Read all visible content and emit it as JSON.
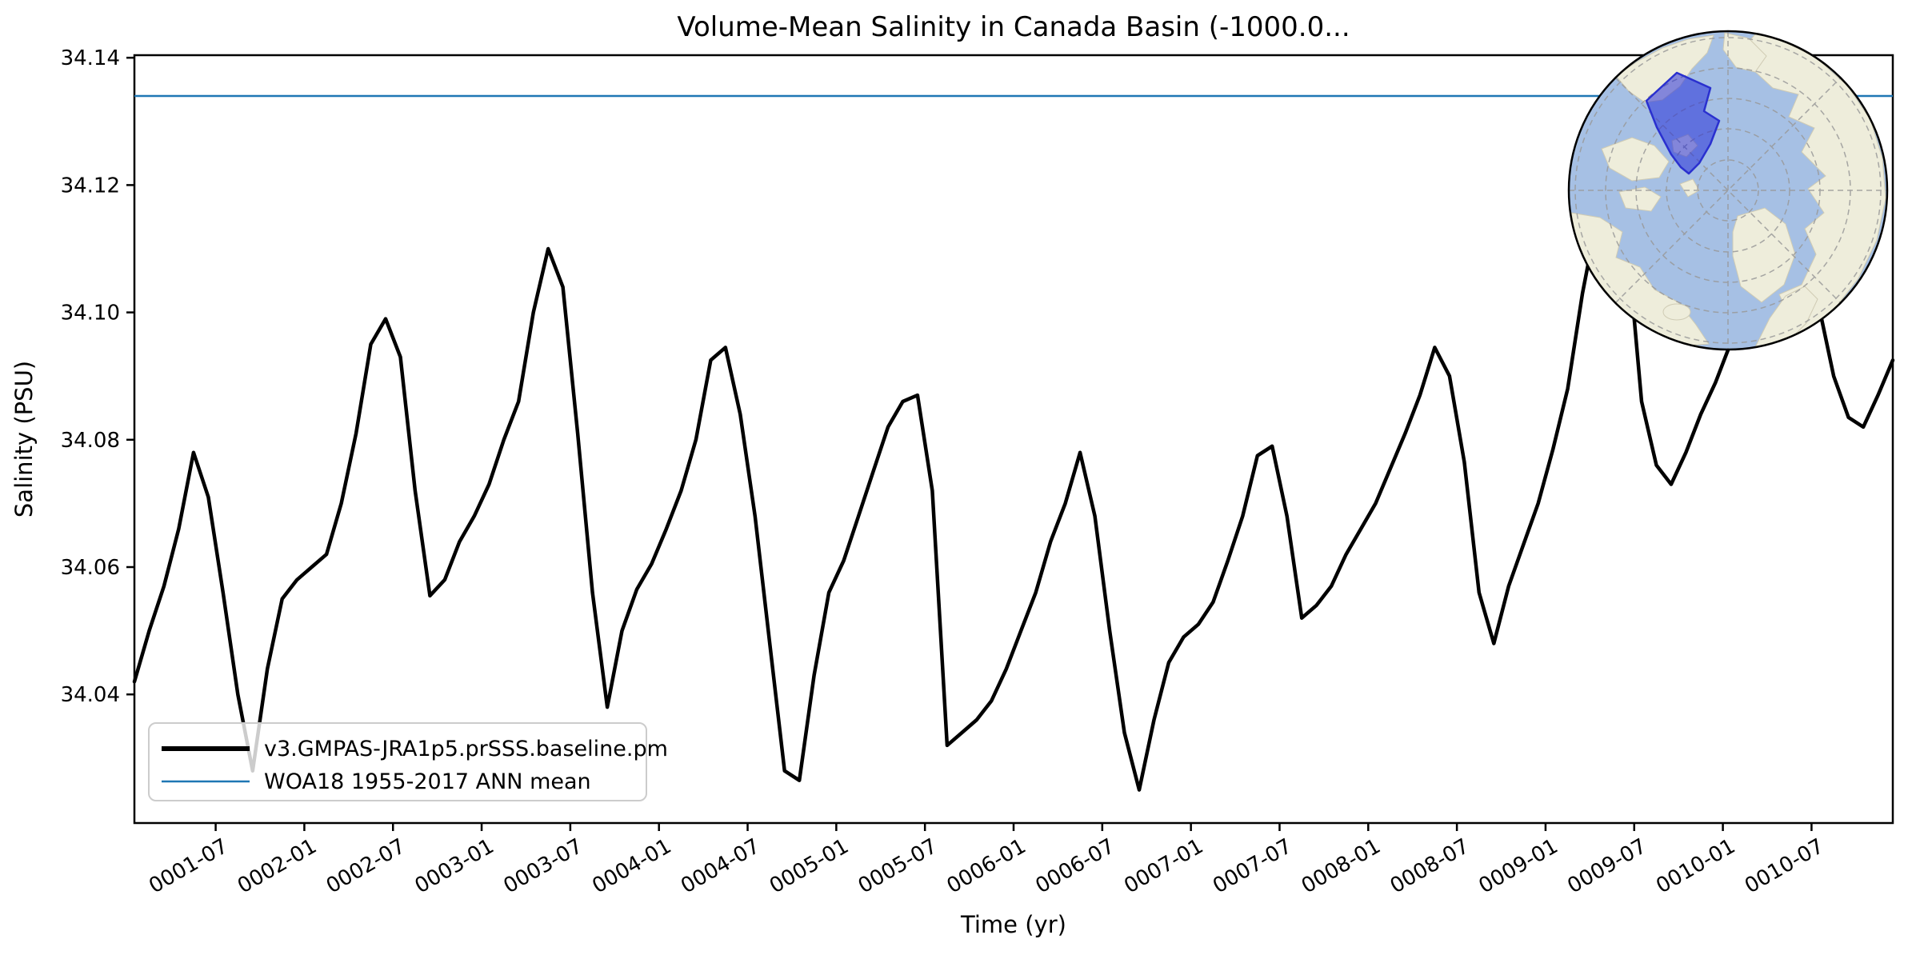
{
  "title": "Volume-Mean Salinity in Canada Basin (-1000.0...",
  "axes": {
    "xlabel": "Time (yr)",
    "ylabel": "Salinity (PSU)",
    "x_tick_labels": [
      "0001-07",
      "0002-01",
      "0002-07",
      "0003-01",
      "0003-07",
      "0004-01",
      "0004-07",
      "0005-01",
      "0005-07",
      "0006-01",
      "0006-07",
      "0007-01",
      "0007-07",
      "0008-01",
      "0008-07",
      "0009-01",
      "0009-07",
      "0010-01",
      "0010-07"
    ],
    "x_tick_month_index": [
      5.5,
      11.5,
      17.5,
      23.5,
      29.5,
      35.5,
      41.5,
      47.5,
      53.5,
      59.5,
      65.5,
      71.5,
      77.5,
      83.5,
      89.5,
      95.5,
      101.5,
      107.5,
      113.5
    ],
    "y_tick_labels": [
      "34.04",
      "34.06",
      "34.08",
      "34.10",
      "34.12",
      "34.14"
    ],
    "y_tick_values": [
      34.04,
      34.06,
      34.08,
      34.1,
      34.12,
      34.14
    ],
    "ylim": [
      34.0198,
      34.1404
    ],
    "xlim_months": [
      0,
      119
    ]
  },
  "legend": {
    "entries": [
      {
        "label": "v3.GMPAS-JRA1p5.prSSS.baseline.pm",
        "color": "#000000",
        "linewidth": 5
      },
      {
        "label": "WOA18 1955-2017 ANN mean",
        "color": "#1f77b4",
        "linewidth": 2.5
      }
    ]
  },
  "chart_data": {
    "type": "line",
    "title": "Volume-Mean Salinity in Canada Basin (-1000.0...",
    "xlabel": "Time (yr)",
    "ylabel": "Salinity (PSU)",
    "x_start_month": "0001-01",
    "x_end_month": "0010-12",
    "ylim": [
      34.0198,
      34.1404
    ],
    "grid": false,
    "legend_position": "lower-left",
    "series": [
      {
        "name": "v3.GMPAS-JRA1p5.prSSS.baseline.pm",
        "color": "#000000",
        "monthly_values": [
          34.042,
          34.05,
          34.057,
          34.066,
          34.078,
          34.071,
          34.056,
          34.04,
          34.028,
          34.044,
          34.055,
          34.058,
          34.06,
          34.062,
          34.07,
          34.081,
          34.095,
          34.099,
          34.093,
          34.072,
          34.0555,
          34.058,
          34.064,
          34.068,
          34.073,
          34.08,
          34.086,
          34.1,
          34.11,
          34.104,
          34.081,
          34.056,
          34.038,
          34.05,
          34.0565,
          34.0605,
          34.066,
          34.072,
          34.08,
          34.0925,
          34.0945,
          34.084,
          34.068,
          34.048,
          34.028,
          34.0265,
          34.043,
          34.056,
          34.061,
          34.068,
          34.075,
          34.082,
          34.086,
          34.087,
          34.072,
          34.032,
          34.034,
          34.036,
          34.039,
          34.044,
          34.05,
          34.056,
          34.064,
          34.07,
          34.078,
          34.068,
          34.05,
          34.034,
          34.025,
          34.036,
          34.045,
          34.049,
          34.051,
          34.0545,
          34.061,
          34.068,
          34.0775,
          34.079,
          34.068,
          34.052,
          34.054,
          34.057,
          34.062,
          34.066,
          34.07,
          34.0755,
          34.081,
          34.087,
          34.0945,
          34.09,
          34.0765,
          34.056,
          34.048,
          34.057,
          34.0635,
          34.07,
          34.0785,
          34.088,
          34.103,
          34.115,
          34.124,
          34.112,
          34.086,
          34.076,
          34.073,
          34.078,
          34.084,
          34.089,
          34.095,
          34.103,
          34.112,
          34.119,
          34.123,
          34.116,
          34.101,
          34.09,
          34.0835,
          34.082,
          34.087,
          34.0925
        ]
      },
      {
        "name": "WOA18 1955-2017 ANN mean",
        "color": "#1f77b4",
        "constant_value": 34.134
      }
    ]
  },
  "inset_map": {
    "name": "canada-basin-region-inset",
    "colors": {
      "ocean": "#a6c0e4",
      "land": "#eeeddb",
      "land_edge": "#cfcbb4",
      "graticule": "#999999",
      "region_fill": "#2028d8",
      "region_fill_opacity": 0.52,
      "region_stroke": "#2a30cf",
      "border": "#000000"
    }
  }
}
